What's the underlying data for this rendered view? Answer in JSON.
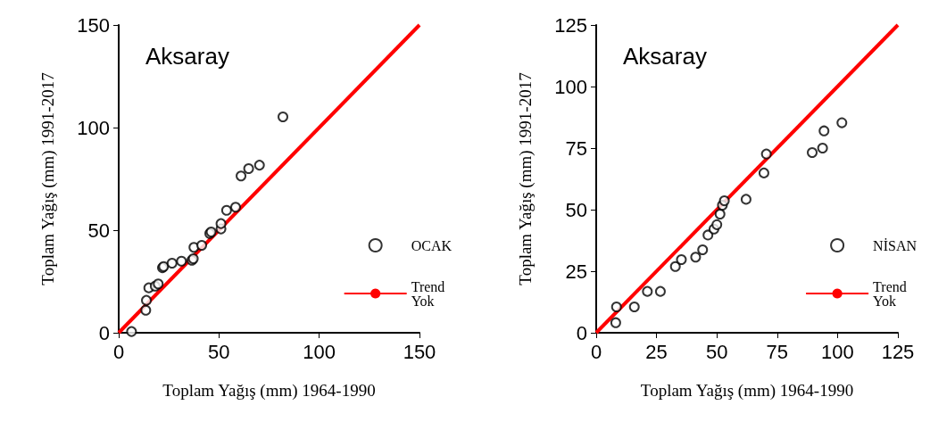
{
  "chart_data": [
    {
      "type": "scatter",
      "xlabel": "Toplam Yağış (mm) 1964-1990",
      "ylabel": "Toplam Yağış (mm) 1991-2017",
      "annotations": [
        "Aksaray"
      ],
      "xlim": [
        0,
        150
      ],
      "ylim": [
        0,
        150
      ],
      "xticks": [
        0,
        50,
        100,
        150
      ],
      "yticks": [
        0,
        50,
        100,
        150
      ],
      "grid": false,
      "legend": "right",
      "marker": "circle",
      "series": [
        {
          "name": "OCAK",
          "color": "#000000",
          "x": [
            6.4,
            13.5,
            13.8,
            15,
            18.2,
            19.7,
            21.8,
            22.4,
            26.6,
            31.3,
            36.5,
            37.2,
            37.5,
            41.4,
            45.4,
            46.1,
            51,
            51,
            53.8,
            58.3,
            61,
            64.8,
            70.2,
            81.9
          ],
          "values": [
            0.6,
            11,
            15.8,
            21.9,
            22.7,
            23.8,
            31.7,
            32.3,
            33.9,
            34.9,
            35.3,
            36.1,
            41.6,
            42.6,
            48.4,
            49.1,
            50.6,
            53.2,
            59.7,
            61.2,
            76.4,
            80,
            81.7,
            105.2
          ]
        },
        {
          "name": "Trend\nYok",
          "type": "line",
          "color": "#ff0000",
          "marker": "none",
          "x": [
            0,
            150
          ],
          "values": [
            0,
            150
          ]
        }
      ]
    },
    {
      "type": "scatter",
      "xlabel": "Toplam Yağış (mm) 1964-1990",
      "ylabel": "Toplam Yağış (mm) 1991-2017",
      "annotations": [
        "Aksaray"
      ],
      "xlim": [
        0,
        125
      ],
      "ylim": [
        0,
        125
      ],
      "xticks": [
        0,
        25,
        50,
        75,
        100,
        125
      ],
      "yticks": [
        0,
        25,
        50,
        75,
        100,
        125
      ],
      "grid": false,
      "legend": "right",
      "marker": "circle",
      "series": [
        {
          "name": "NİSAN",
          "color": "#000000",
          "x": [
            8.1,
            8.4,
            15.8,
            21.2,
            26.6,
            32.8,
            35.3,
            41.2,
            44.1,
            46.3,
            48.8,
            50,
            51.3,
            52.3,
            53.1,
            62.1,
            69.5,
            70.5,
            89.5,
            93.8,
            94.4,
            101.8
          ],
          "values": [
            4.1,
            10.5,
            10.5,
            16.8,
            16.8,
            26.9,
            29.7,
            30.7,
            33.7,
            39.7,
            42.1,
            43.9,
            48.2,
            51.8,
            53.6,
            54.2,
            64.9,
            72.6,
            73.2,
            75,
            82,
            85.3
          ]
        },
        {
          "name": "Trend\nYok",
          "type": "line",
          "color": "#ff0000",
          "marker": "none",
          "x": [
            0,
            125
          ],
          "values": [
            0,
            125
          ]
        }
      ]
    }
  ]
}
